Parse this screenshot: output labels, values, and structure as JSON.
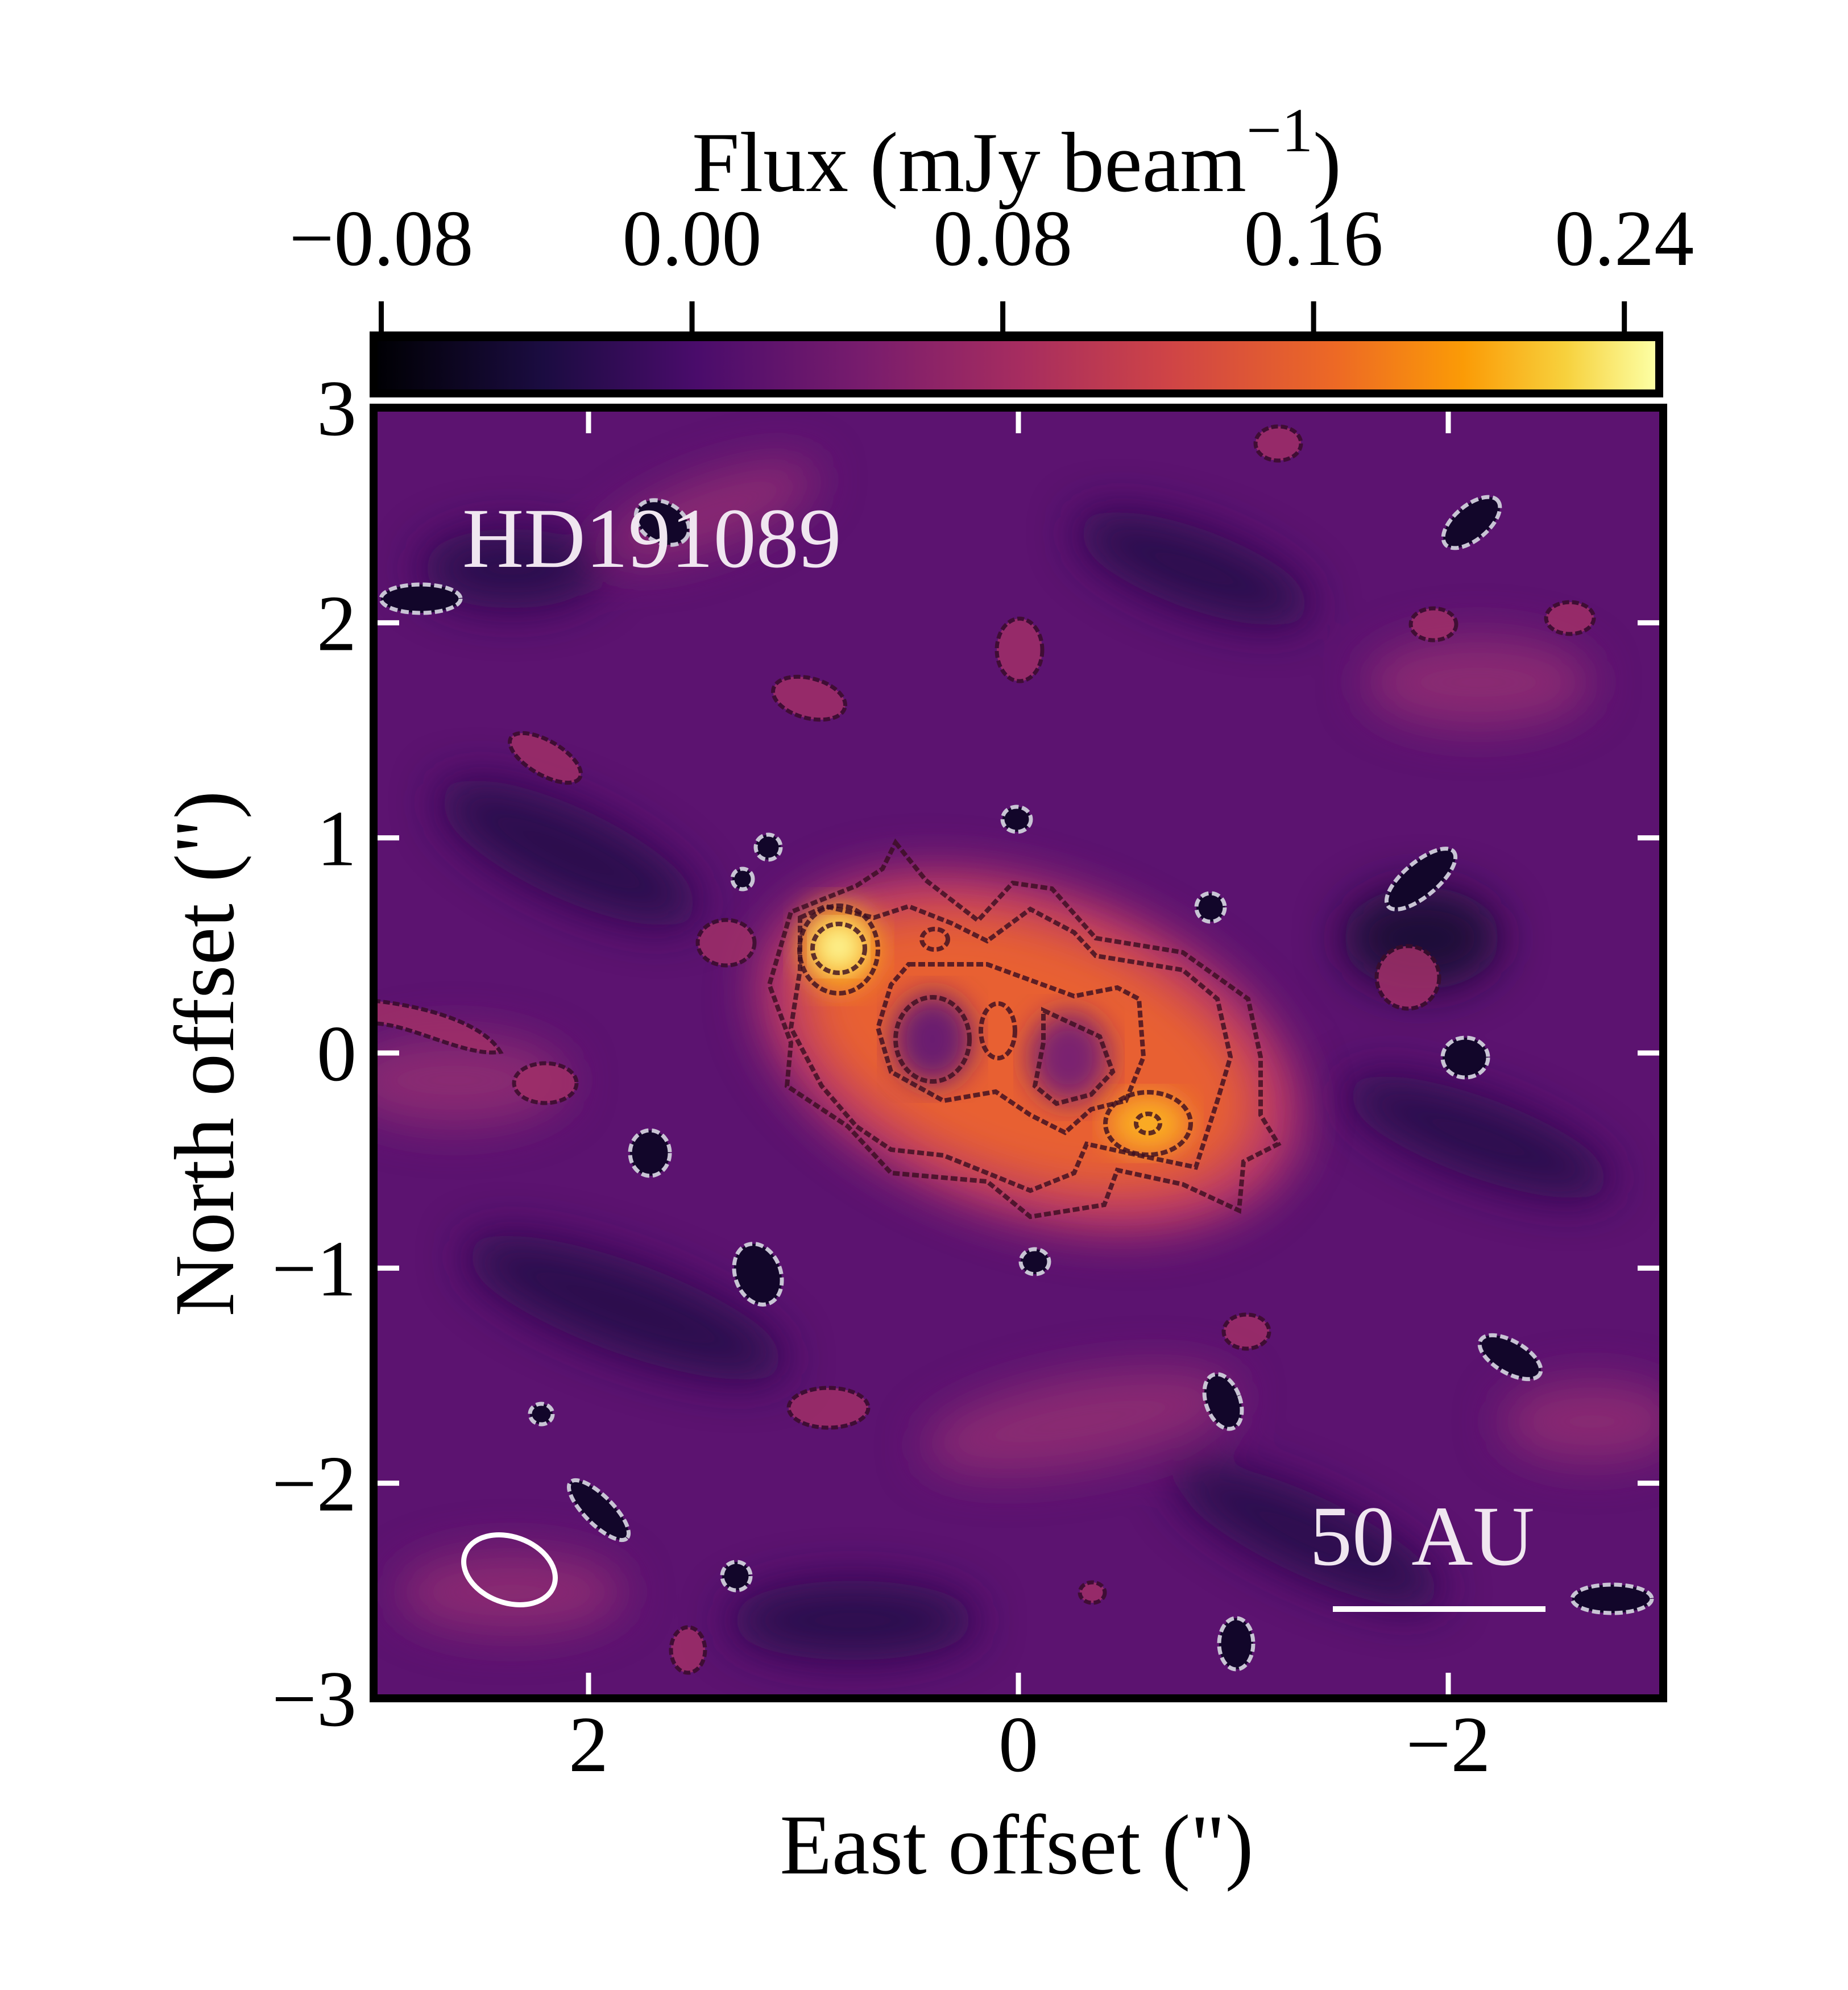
{
  "chart_data": {
    "type": "heatmap",
    "title": "",
    "object_label": "HD191089",
    "xlabel": "East offset (\")",
    "ylabel": "North offset (\")",
    "xlim": [
      3,
      -3
    ],
    "ylim": [
      -3,
      3
    ],
    "xticks": [
      2,
      0,
      -2
    ],
    "xtick_labels": [
      "2",
      "0",
      "−2"
    ],
    "yticks": [
      3,
      2,
      1,
      0,
      -1,
      -2,
      -3
    ],
    "ytick_labels": [
      "3",
      "2",
      "1",
      "0",
      "−1",
      "−2",
      "−3"
    ],
    "colorbar": {
      "label": "Flux (mJy beam",
      "label_sup": "−1",
      "label_close": ")",
      "range": [
        -0.083,
        0.25
      ],
      "ticks": [
        -0.08,
        0.0,
        0.08,
        0.16,
        0.24
      ],
      "tick_labels": [
        "−0.08",
        "0.00",
        "0.08",
        "0.16",
        "0.24"
      ],
      "colormap": "inferno"
    },
    "scale_bar": {
      "label": "50 AU"
    },
    "beam": "ellipse lower-left",
    "colors": {
      "low": "#000004",
      "mid": "#b5367a",
      "high": "#fcffa4",
      "background": "#5c1370"
    }
  }
}
